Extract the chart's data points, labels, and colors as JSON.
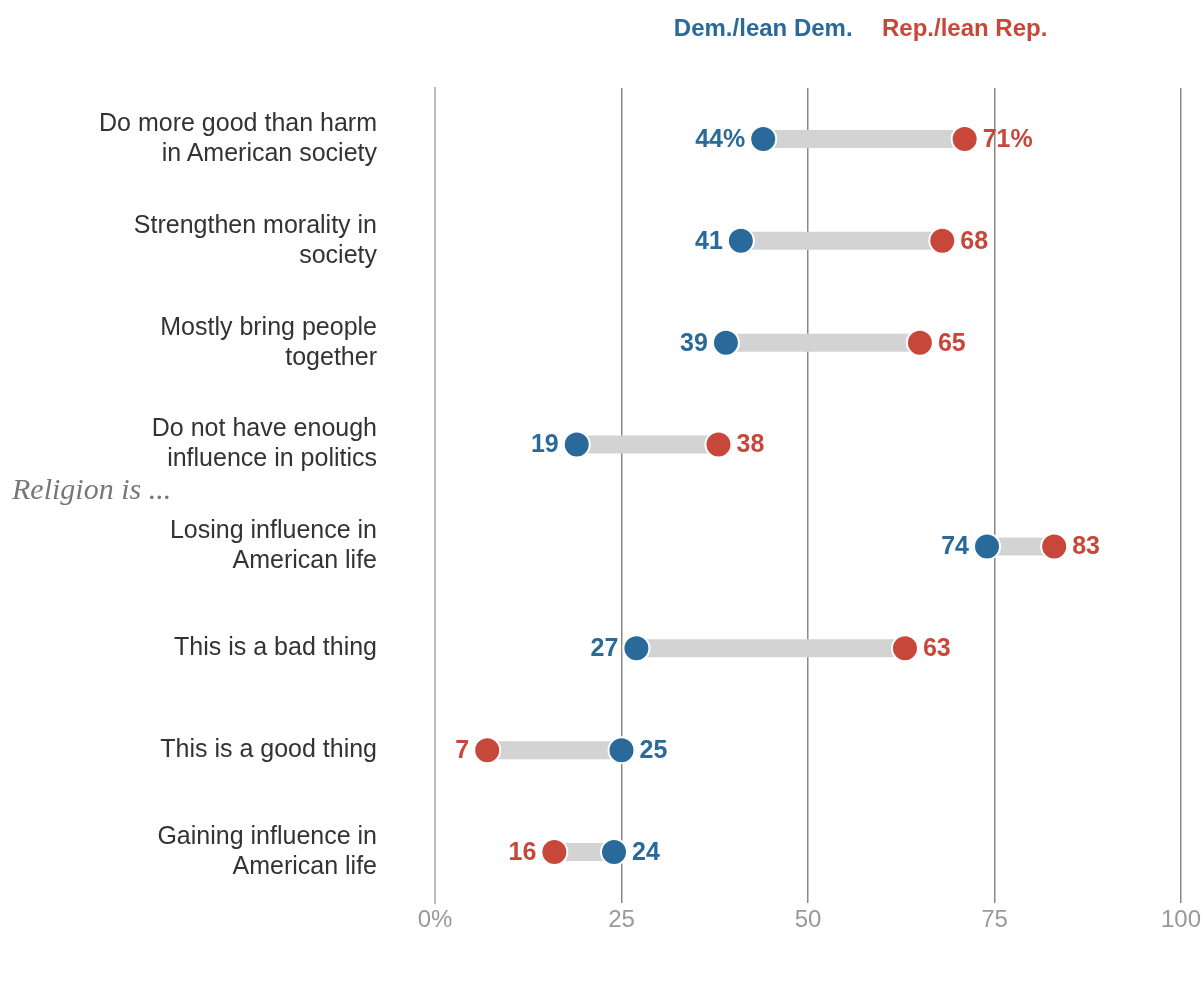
{
  "chart_data": {
    "type": "scatter",
    "orientation": "horizontal",
    "categories": [
      "Do more good than harm in American society",
      "Strengthen morality in society",
      "Mostly bring people together",
      "Do not have enough influence in politics",
      "Losing influence in American life",
      "This is a bad thing",
      "This is a good thing",
      "Gaining influence in American life"
    ],
    "series": [
      {
        "name": "Dem./lean Dem.",
        "color": "#2a6a9a",
        "values": [
          44,
          41,
          39,
          19,
          74,
          27,
          25,
          24
        ],
        "value_labels": [
          "44%",
          "41",
          "39",
          "19",
          "74",
          "27",
          "25",
          "24"
        ]
      },
      {
        "name": "Rep./lean Rep.",
        "color": "#c8473b",
        "values": [
          71,
          68,
          65,
          38,
          83,
          63,
          7,
          16
        ],
        "value_labels": [
          "71%",
          "68",
          "65",
          "38",
          "83",
          "63",
          "7",
          "16"
        ]
      }
    ],
    "xlim": [
      0,
      100
    ],
    "xticks": [
      {
        "value": 0,
        "label": "0%"
      },
      25,
      50,
      75,
      100
    ],
    "grid": "x",
    "legend": "top",
    "marker": "circle",
    "data_labels": true,
    "annotations": [
      "Religion is ..."
    ]
  }
}
